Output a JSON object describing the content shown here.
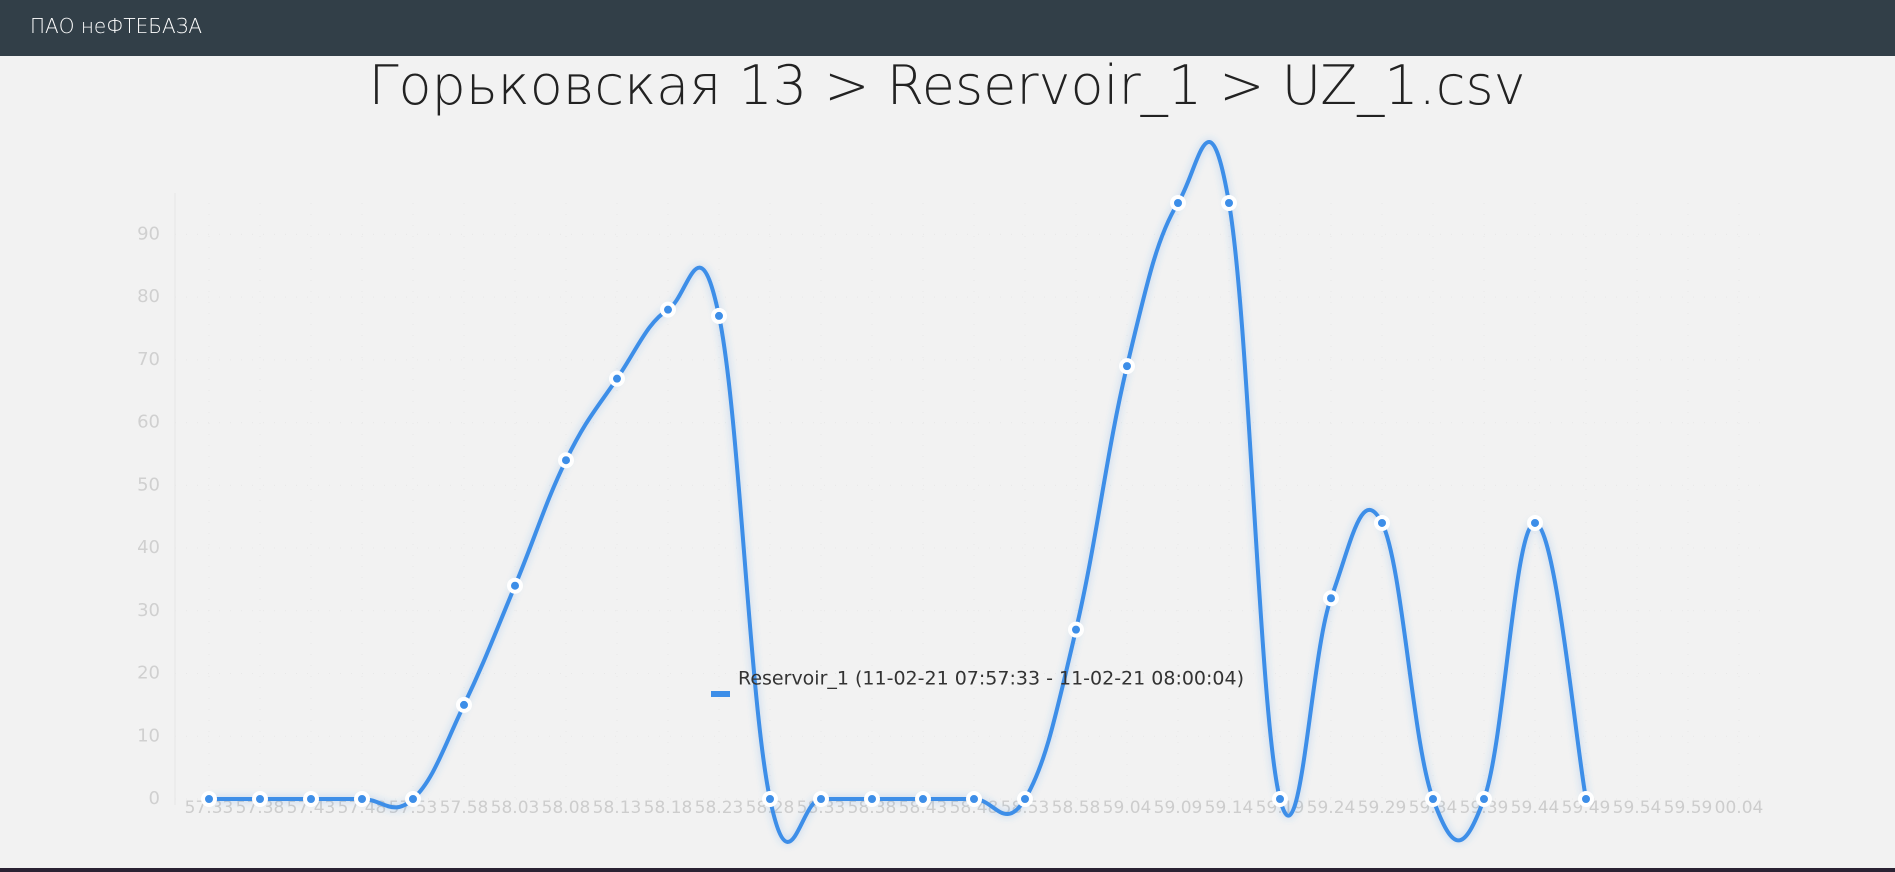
{
  "header": {
    "brand": "ПАО неФТЕБАЗА"
  },
  "chart_data": {
    "type": "line",
    "title": "Горьковская 13 > Reservoir_1 > UZ_1.csv",
    "categories": [
      "57.33",
      "57.38",
      "57.43",
      "57.48",
      "57.53",
      "57.58",
      "58.03",
      "58.08",
      "58.13",
      "58.18",
      "58.23",
      "58.28",
      "58.33",
      "58.38",
      "58.43",
      "58.48",
      "58.53",
      "58.58",
      "59.04",
      "59.09",
      "59.14",
      "59.19",
      "59.24",
      "59.29",
      "59.34",
      "59.39",
      "59.44",
      "59.49",
      "59.54",
      "59.59",
      "00.04"
    ],
    "series": [
      {
        "name": "Reservoir_1 (11-02-21 07:57:33 - 11-02-21 08:00:04)",
        "color": "#3d8ee8",
        "values": [
          0,
          0,
          0,
          0,
          0,
          15,
          34,
          54,
          67,
          78,
          77,
          0,
          0,
          0,
          0,
          0,
          0,
          27,
          69,
          95,
          95,
          0,
          32,
          44,
          0,
          0,
          44,
          0,
          null,
          null,
          null
        ]
      }
    ],
    "ylim": [
      0,
      95
    ],
    "yticks": [
      0,
      10,
      20,
      30,
      40,
      50,
      60,
      70,
      80,
      90
    ],
    "grid": true
  }
}
